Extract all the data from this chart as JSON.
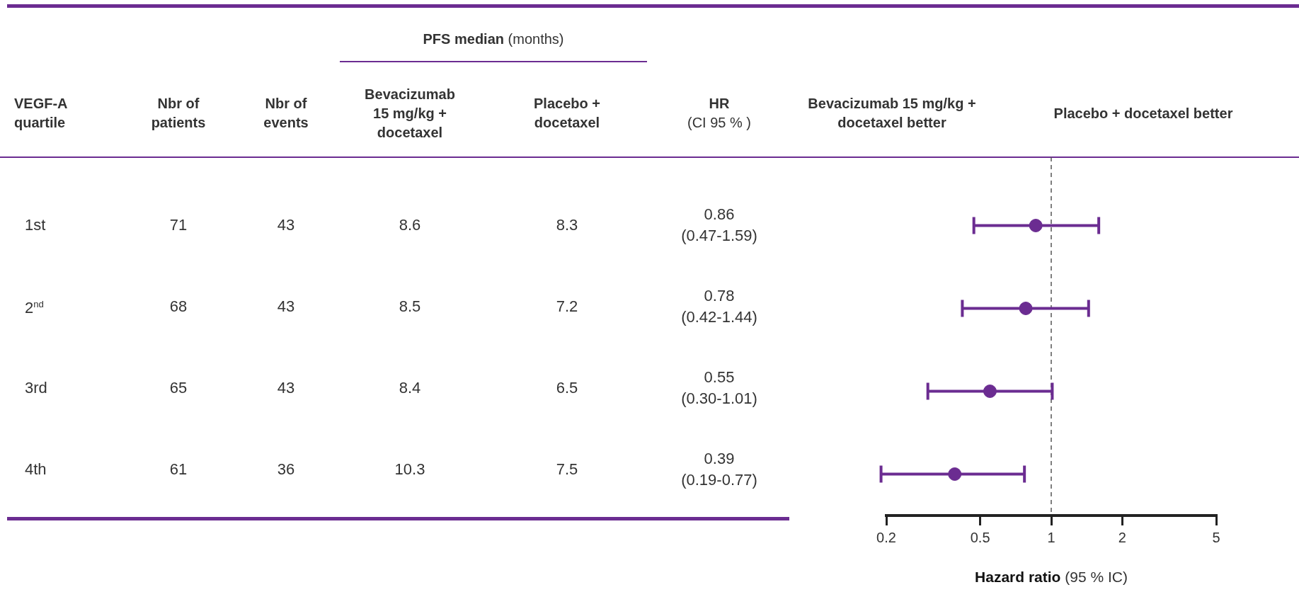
{
  "chart_data": [
    {
      "type": "other",
      "title": "PFS median (months)",
      "categories": [
        "VEGF-A quartile",
        "Nbr of patients",
        "Nbr of events",
        "Bevacizumab 15 mg/kg + docetaxel",
        "Placebo + docetaxel",
        "HR (CI 95 % )"
      ],
      "annotations": [
        "1st",
        "71",
        "43",
        "8.6",
        "8.3",
        "0.86\n(0.47-1.59)",
        "2$^{nd}$",
        "68",
        "43",
        "8.5",
        "7.2",
        "0.78\n(0.42-1.44)",
        "3rd",
        "65",
        "43",
        "8.4",
        "6.5",
        "0.55\n(0.30-1.01)",
        "4th",
        "61",
        "36",
        "10.3",
        "7.5",
        "0.39\n(0.19-0.77)"
      ]
    },
    {
      "type": "scatter",
      "orientation": "horizontal",
      "xlabel": "Hazard ratio (95 % IC)",
      "categories": [
        null,
        null,
        null,
        null
      ],
      "values": [
        0.86,
        0.78,
        0.55,
        0.39
      ],
      "color": "#6b2c91",
      "errors": [
        [
          0.47,
          1.59
        ],
        [
          0.42,
          1.44
        ],
        [
          0.3,
          1.01
        ],
        [
          0.19,
          0.77
        ]
      ],
      "annotations": [
        "Bevacizumab 15 mg/kg + docetaxel better",
        "Placebo + docetaxel better"
      ],
      "log": "x",
      "xlim": [
        0.2,
        5
      ],
      "xticks": [
        0.2,
        0.5,
        1,
        2,
        5
      ],
      "marker": "circle",
      "ref_lines": [
        {
          "axis": "x",
          "value": 1,
          "color": "#555555",
          "line_style": "dashed"
        }
      ]
    }
  ]
}
